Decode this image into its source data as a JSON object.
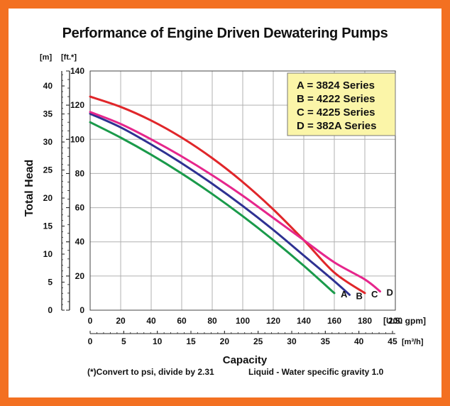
{
  "colors": {
    "frame": "#f37021",
    "legend_bg": "#fbf5a8",
    "grid": "#b0b0b0"
  },
  "chart_data": {
    "type": "line",
    "title": "Performance of Engine Driven Dewatering Pumps",
    "xlabel": "Capacity",
    "ylabel": "Total Head",
    "x_unit_primary": "[U.S. gpm]",
    "x_unit_secondary": "[m³/h]",
    "y_unit_left": "[m]",
    "y_unit_right": "[ft.*]",
    "xlim": [
      0,
      200
    ],
    "ylim": [
      0,
      140
    ],
    "x_ticks_gpm": [
      0,
      20,
      40,
      60,
      80,
      100,
      120,
      140,
      160,
      180,
      200
    ],
    "x_ticks_m3h": [
      0,
      5,
      10,
      15,
      20,
      25,
      30,
      35,
      40,
      45
    ],
    "y_ticks_ft": [
      0,
      20,
      40,
      60,
      80,
      100,
      120,
      140
    ],
    "y_ticks_m": [
      0,
      5,
      10,
      15,
      20,
      25,
      30,
      35,
      40
    ],
    "grid": true,
    "legend_position": "top-right",
    "legend": [
      "A = 3824 Series",
      "B = 4222 Series",
      "C = 4225 Series",
      "D = 382A Series"
    ],
    "footnote": "(*)Convert to psi, divide by 2.31",
    "footnote2": "Liquid - Water specific gravity 1.0",
    "series": [
      {
        "name": "A",
        "color": "#1a9a4a",
        "x": [
          0,
          20,
          40,
          60,
          80,
          100,
          120,
          140,
          160
        ],
        "y": [
          110,
          101,
          91,
          80,
          68,
          55,
          41,
          26,
          10
        ]
      },
      {
        "name": "B",
        "color": "#2e3192",
        "x": [
          0,
          20,
          40,
          60,
          80,
          100,
          120,
          140,
          160,
          170
        ],
        "y": [
          115,
          107,
          97,
          86,
          74,
          61,
          47,
          32,
          17,
          9
        ]
      },
      {
        "name": "C",
        "color": "#e0262a",
        "x": [
          0,
          20,
          40,
          60,
          80,
          100,
          120,
          140,
          160,
          180
        ],
        "y": [
          125,
          119,
          111,
          101,
          89,
          75,
          59,
          41,
          22,
          10
        ]
      },
      {
        "name": "D",
        "color": "#e6268c",
        "x": [
          0,
          20,
          40,
          60,
          80,
          100,
          120,
          140,
          160,
          180,
          190
        ],
        "y": [
          116,
          109,
          100,
          90,
          79,
          67,
          54,
          41,
          28,
          18,
          11
        ]
      }
    ]
  }
}
